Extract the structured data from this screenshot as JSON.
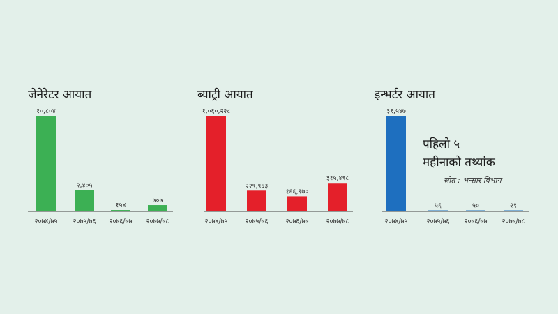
{
  "chart_data": [
    {
      "type": "bar",
      "title": "जेनेरेटर आयात",
      "color": "#3cb054",
      "categories": [
        "२०७४/७५",
        "२०७५/७६",
        "२०७६/७७",
        "२०७७/७८"
      ],
      "values": [
        10804,
        2405,
        154,
        707
      ],
      "value_labels": [
        "१०,८०४",
        "२,४०५",
        "१५४",
        "७०७"
      ],
      "ylim": [
        0,
        10804
      ]
    },
    {
      "type": "bar",
      "title": "ब्याट्री आयात",
      "color": "#e4202a",
      "categories": [
        "२०७४/७५",
        "२०७५/७६",
        "२०७६/७७",
        "२०७७/७८"
      ],
      "values": [
        1060228,
        229963,
        166970,
        315498
      ],
      "value_labels": [
        "१,०६०,२२८",
        "२२९,९६३",
        "१६६,९७०",
        "३१५,४९८"
      ],
      "ylim": [
        0,
        1060228
      ]
    },
    {
      "type": "bar",
      "title": "इन्भर्टर आयात",
      "color": "#1e6fbf",
      "categories": [
        "२०७४/७५",
        "२०७५/७६",
        "२०७६/७७",
        "२०७७/७८"
      ],
      "values": [
        31547,
        56,
        50,
        29
      ],
      "value_labels": [
        "३१,५४७",
        "५६",
        "५०",
        "२९"
      ],
      "ylim": [
        0,
        31547
      ]
    }
  ],
  "note": {
    "line1": "पहिलो ५",
    "line2": "महीनाको तथ्यांक",
    "source": "स्रोत : भन्सार विभाग"
  }
}
